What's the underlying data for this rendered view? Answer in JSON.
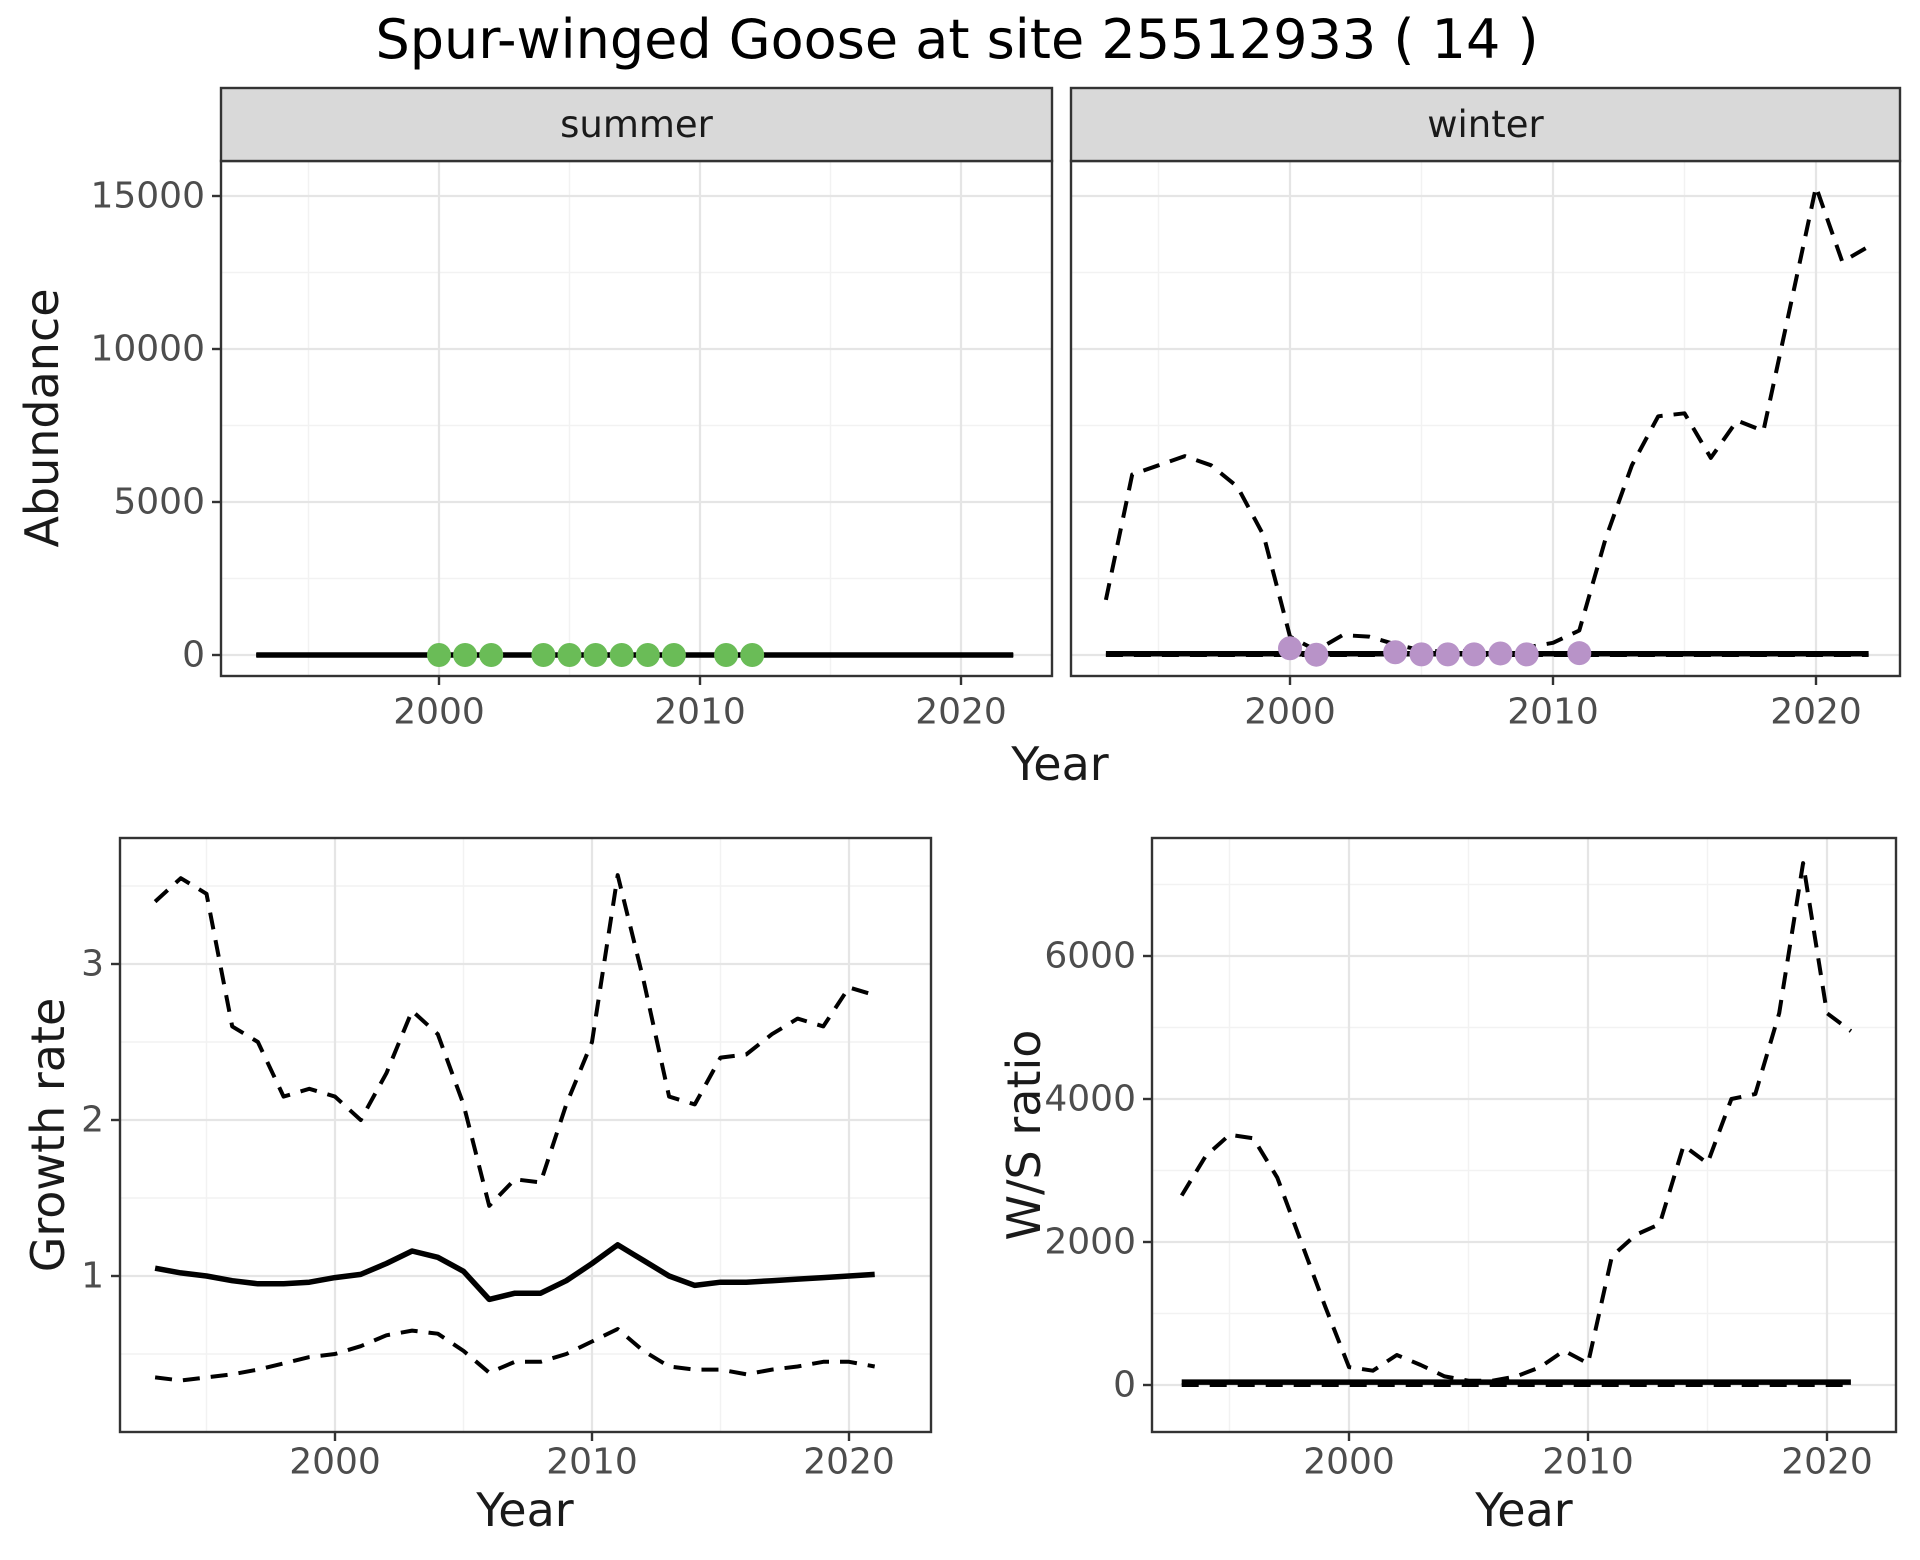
{
  "chart_title": "Spur-winged Goose at site 25512933 ( 14 )",
  "axes": {
    "abundance_label": "Abundance",
    "growth_label": "Growth rate",
    "ws_label": "W/S ratio",
    "year_label": "Year"
  },
  "colors": {
    "summer_points": "#6abc57",
    "winter_points": "#b893c8",
    "line": "#000000",
    "strip_fill": "#d9d9d9",
    "panel_border": "#333333",
    "grid_major": "#e5e5e5",
    "grid_minor": "#f2f2f2",
    "tick_text": "#4d4d4d"
  },
  "chart_data": [
    {
      "type": "line",
      "name": "abundance-summer",
      "facet": "summer",
      "years": [
        1993,
        1994,
        1995,
        1996,
        1997,
        1998,
        1999,
        2000,
        2001,
        2002,
        2003,
        2004,
        2005,
        2006,
        2007,
        2008,
        2009,
        2010,
        2011,
        2012,
        2013,
        2014,
        2015,
        2016,
        2017,
        2018,
        2019,
        2020,
        2021,
        2022
      ],
      "series": [
        {
          "name": "estimate",
          "style": "solid",
          "values": [
            0,
            0,
            0,
            0,
            0,
            0,
            0,
            0,
            0,
            0,
            0,
            0,
            0,
            0,
            0,
            0,
            0,
            0,
            0,
            0,
            0,
            0,
            0,
            0,
            0,
            0,
            0,
            0,
            0,
            0
          ]
        },
        {
          "name": "ci-upper",
          "style": "dashed",
          "values": [
            0,
            0,
            0,
            0,
            0,
            0,
            0,
            0,
            0,
            0,
            0,
            0,
            0,
            0,
            0,
            0,
            0,
            0,
            0,
            0,
            0,
            0,
            0,
            0,
            0,
            0,
            0,
            0,
            0,
            0
          ]
        },
        {
          "name": "ci-lower",
          "style": "dashed",
          "values": [
            0,
            0,
            0,
            0,
            0,
            0,
            0,
            0,
            0,
            0,
            0,
            0,
            0,
            0,
            0,
            0,
            0,
            0,
            0,
            0,
            0,
            0,
            0,
            0,
            0,
            0,
            0,
            0,
            0,
            0
          ]
        }
      ],
      "observations": {
        "years": [
          2000,
          2001,
          2002,
          2004,
          2005,
          2006,
          2007,
          2008,
          2009,
          2011,
          2012
        ],
        "values": [
          0,
          0,
          0,
          0,
          0,
          0,
          0,
          0,
          0,
          0,
          0
        ],
        "color_key": "summer_points"
      },
      "x_axis": {
        "ticks": [
          2000,
          2010,
          2020
        ],
        "tick_labels": [
          "2000",
          "2010",
          "2020"
        ],
        "minor_ticks": [
          1995,
          2005,
          2015
        ],
        "range": [
          1991.6,
          2023.3
        ]
      },
      "y_axis": {
        "ticks": [
          0,
          5000,
          10000,
          15000
        ],
        "tick_labels": [
          "0",
          "5000",
          "10000",
          "15000"
        ],
        "minor_ticks": [
          2500,
          7500,
          12500
        ],
        "range": [
          -700,
          16100
        ]
      }
    },
    {
      "type": "line",
      "name": "abundance-winter",
      "facet": "winter",
      "years": [
        1993,
        1994,
        1995,
        1996,
        1997,
        1998,
        1999,
        2000,
        2001,
        2002,
        2003,
        2004,
        2005,
        2006,
        2007,
        2008,
        2009,
        2010,
        2011,
        2012,
        2013,
        2014,
        2015,
        2016,
        2017,
        2018,
        2019,
        2020,
        2021,
        2022
      ],
      "series": [
        {
          "name": "estimate",
          "style": "solid",
          "values": [
            40,
            40,
            40,
            40,
            40,
            40,
            40,
            40,
            40,
            40,
            40,
            40,
            40,
            40,
            40,
            40,
            40,
            40,
            40,
            40,
            40,
            40,
            40,
            40,
            40,
            40,
            40,
            40,
            40,
            40
          ]
        },
        {
          "name": "ci-upper",
          "style": "dashed",
          "values": [
            1800,
            5900,
            6200,
            6500,
            6200,
            5500,
            3900,
            600,
            150,
            650,
            600,
            350,
            150,
            100,
            150,
            200,
            250,
            400,
            800,
            3800,
            6200,
            7800,
            7900,
            6440,
            7660,
            7320,
            11300,
            15300,
            12850,
            13350
          ]
        },
        {
          "name": "ci-lower",
          "style": "dashed",
          "values": [
            0,
            0,
            0,
            0,
            0,
            0,
            0,
            0,
            0,
            0,
            0,
            0,
            0,
            0,
            0,
            0,
            0,
            0,
            0,
            0,
            0,
            0,
            0,
            0,
            0,
            0,
            0,
            0,
            0,
            0
          ]
        }
      ],
      "observations": {
        "years": [
          2000,
          2001,
          2004,
          2005,
          2006,
          2007,
          2008,
          2009,
          2011
        ],
        "values": [
          220,
          10,
          90,
          20,
          20,
          20,
          50,
          20,
          60
        ],
        "color_key": "winter_points"
      },
      "x_axis": {
        "ticks": [
          2000,
          2010,
          2020
        ],
        "tick_labels": [
          "2000",
          "2010",
          "2020"
        ],
        "minor_ticks": [
          1995,
          2005,
          2015
        ],
        "range": [
          1991.6,
          2023.3
        ]
      },
      "y_axis": {
        "ticks": [
          0,
          5000,
          10000,
          15000
        ],
        "tick_labels": [
          "0",
          "5000",
          "10000",
          "15000"
        ],
        "minor_ticks": [
          2500,
          7500,
          12500
        ],
        "range": [
          -700,
          16100
        ]
      }
    },
    {
      "type": "line",
      "name": "growth-rate",
      "facet": "",
      "years": [
        1993,
        1994,
        1995,
        1996,
        1997,
        1998,
        1999,
        2000,
        2001,
        2002,
        2003,
        2004,
        2005,
        2006,
        2007,
        2008,
        2009,
        2010,
        2011,
        2012,
        2013,
        2014,
        2015,
        2016,
        2017,
        2018,
        2019,
        2020,
        2021
      ],
      "series": [
        {
          "name": "estimate",
          "style": "solid",
          "values": [
            1.05,
            1.02,
            1.0,
            0.97,
            0.95,
            0.95,
            0.96,
            0.99,
            1.01,
            1.08,
            1.16,
            1.12,
            1.03,
            0.85,
            0.89,
            0.89,
            0.97,
            1.08,
            1.2,
            1.1,
            1.0,
            0.94,
            0.96,
            0.96,
            0.97,
            0.98,
            0.99,
            1.0,
            1.01
          ]
        },
        {
          "name": "ci-upper",
          "style": "dashed",
          "values": [
            3.4,
            3.55,
            3.45,
            2.6,
            2.5,
            2.15,
            2.2,
            2.15,
            2.0,
            2.3,
            2.7,
            2.55,
            2.1,
            1.45,
            1.62,
            1.6,
            2.1,
            2.5,
            3.57,
            2.9,
            2.15,
            2.1,
            2.4,
            2.42,
            2.55,
            2.65,
            2.6,
            2.85,
            2.8
          ]
        },
        {
          "name": "ci-lower",
          "style": "dashed",
          "values": [
            0.35,
            0.33,
            0.35,
            0.37,
            0.4,
            0.44,
            0.48,
            0.5,
            0.55,
            0.62,
            0.65,
            0.63,
            0.52,
            0.38,
            0.45,
            0.45,
            0.5,
            0.58,
            0.66,
            0.52,
            0.42,
            0.4,
            0.4,
            0.37,
            0.4,
            0.42,
            0.45,
            0.45,
            0.42
          ]
        }
      ],
      "observations": {
        "years": [],
        "values": [],
        "color_key": "summer_points"
      },
      "x_axis": {
        "ticks": [
          2000,
          2010,
          2020
        ],
        "tick_labels": [
          "2000",
          "2010",
          "2020"
        ],
        "minor_ticks": [
          1995,
          2005,
          2015
        ],
        "range": [
          1991.6,
          2023.2
        ]
      },
      "y_axis": {
        "ticks": [
          1,
          2,
          3
        ],
        "tick_labels": [
          "1",
          "2",
          "3"
        ],
        "minor_ticks": [
          0.5,
          1.5,
          2.5,
          3.5
        ],
        "range": [
          0,
          3.8
        ]
      }
    },
    {
      "type": "line",
      "name": "ws-ratio",
      "facet": "",
      "years": [
        1993,
        1994,
        1995,
        1996,
        1997,
        1998,
        1999,
        2000,
        2001,
        2002,
        2003,
        2004,
        2005,
        2006,
        2007,
        2008,
        2009,
        2010,
        2011,
        2012,
        2013,
        2014,
        2015,
        2016,
        2017,
        2018,
        2019,
        2020,
        2021
      ],
      "series": [
        {
          "name": "estimate",
          "style": "solid",
          "values": [
            40,
            40,
            40,
            40,
            40,
            40,
            40,
            40,
            40,
            40,
            40,
            40,
            40,
            40,
            40,
            40,
            40,
            40,
            40,
            40,
            40,
            40,
            40,
            40,
            40,
            40,
            40,
            40,
            40
          ]
        },
        {
          "name": "ci-upper",
          "style": "dashed",
          "values": [
            2650,
            3200,
            3500,
            3450,
            2900,
            2000,
            1100,
            250,
            200,
            420,
            280,
            120,
            60,
            60,
            120,
            250,
            480,
            300,
            1800,
            2100,
            2250,
            3350,
            3100,
            4000,
            4070,
            5200,
            7300,
            5200,
            4950
          ]
        },
        {
          "name": "ci-lower",
          "style": "dashed",
          "values": [
            0,
            0,
            0,
            0,
            0,
            0,
            0,
            0,
            0,
            0,
            0,
            0,
            0,
            0,
            0,
            0,
            0,
            0,
            0,
            0,
            0,
            0,
            0,
            0,
            0,
            0,
            0,
            0,
            0
          ]
        }
      ],
      "observations": {
        "years": [],
        "values": [],
        "color_key": "winter_points"
      },
      "x_axis": {
        "ticks": [
          2000,
          2010,
          2020
        ],
        "tick_labels": [
          "2000",
          "2010",
          "2020"
        ],
        "minor_ticks": [
          1995,
          2005,
          2015
        ],
        "range": [
          1991.8,
          2022.9
        ]
      },
      "y_axis": {
        "ticks": [
          0,
          2000,
          4000,
          6000
        ],
        "tick_labels": [
          "0",
          "2000",
          "4000",
          "6000"
        ],
        "minor_ticks": [
          1000,
          3000,
          5000,
          7000
        ],
        "range": [
          -650,
          7650
        ]
      }
    }
  ]
}
